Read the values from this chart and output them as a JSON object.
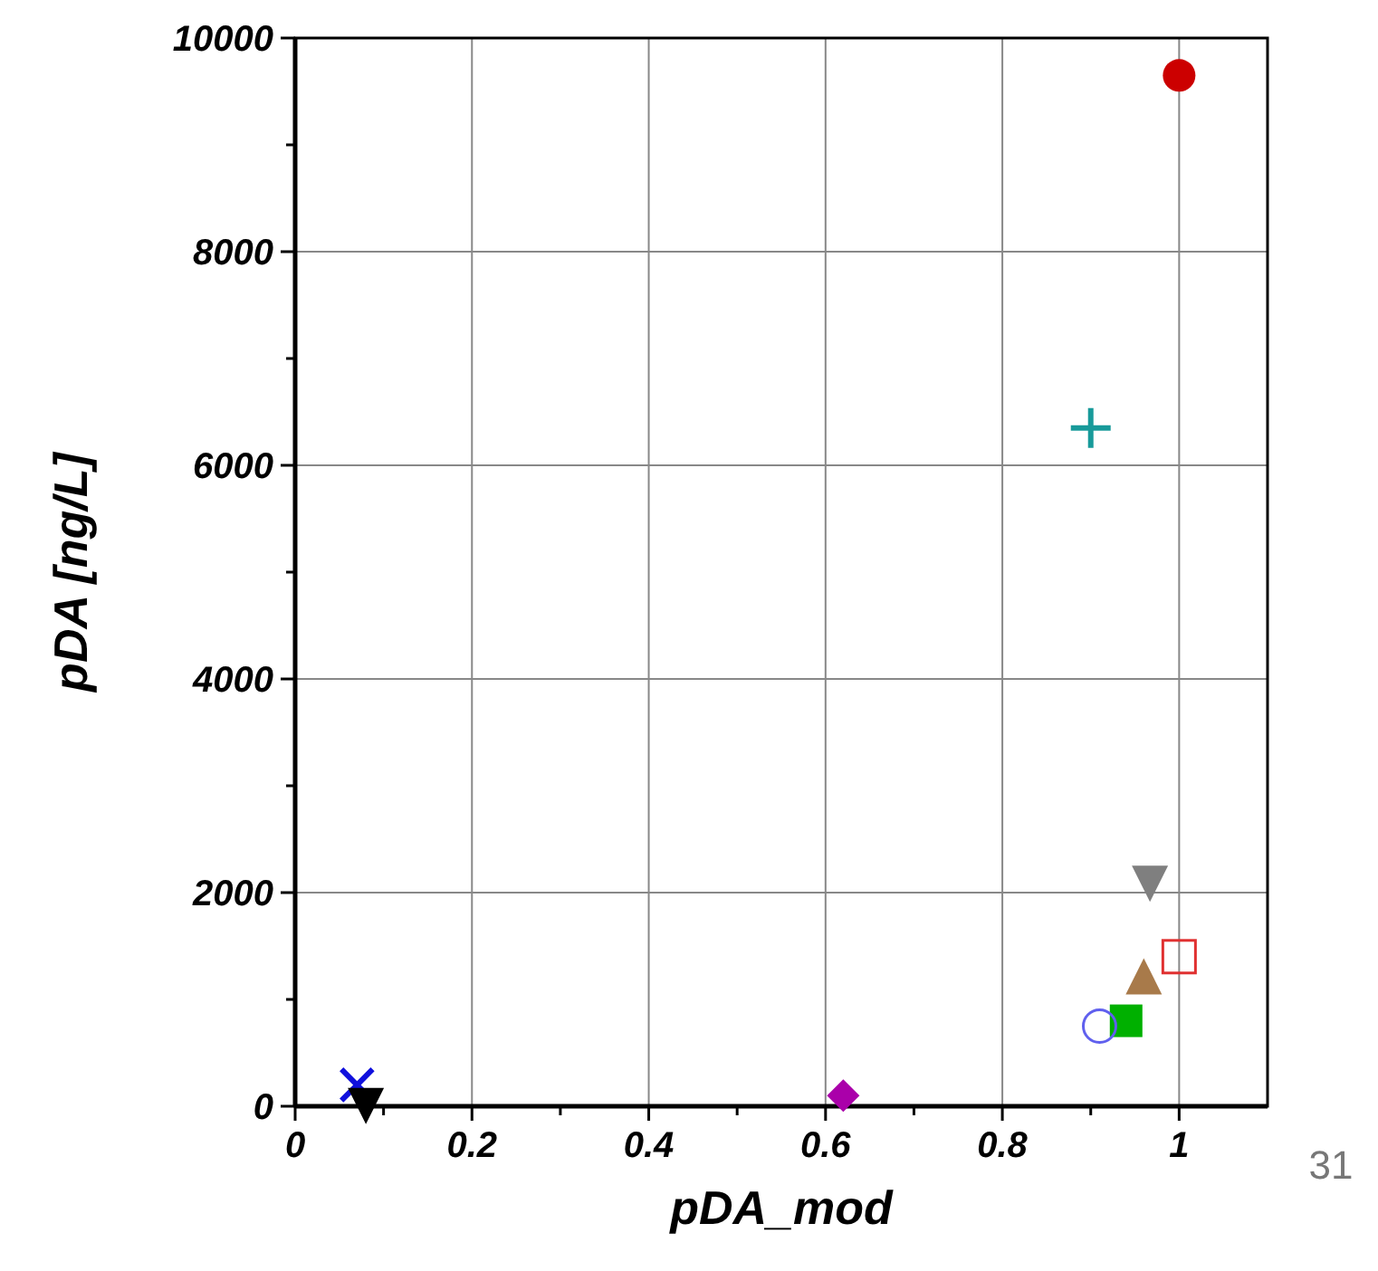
{
  "chart_data": {
    "type": "scatter",
    "xlabel": "pDA_mod",
    "ylabel": "pDA [ng/L]",
    "xlim": [
      0,
      1.1
    ],
    "ylim": [
      0,
      10000
    ],
    "xticks": [
      0,
      {
        "value": 0.1,
        "label": null
      },
      {
        "value": 0.2,
        "label": "0.2"
      },
      {
        "value": 0.3,
        "label": null
      },
      {
        "value": 0.4,
        "label": "0.4"
      },
      {
        "value": 0.5,
        "label": null
      },
      {
        "value": 0.6,
        "label": "0.6"
      },
      {
        "value": 0.7,
        "label": null
      },
      {
        "value": 0.8,
        "label": "0.8"
      },
      {
        "value": 0.9,
        "label": null
      },
      1
    ],
    "yticks": [
      0,
      {
        "value": 1000,
        "label": null
      },
      2000,
      {
        "value": 3000,
        "label": null
      },
      4000,
      {
        "value": 5000,
        "label": null
      },
      6000,
      {
        "value": 7000,
        "label": null
      },
      8000,
      {
        "value": 9000,
        "label": null
      },
      10000
    ],
    "grid": true,
    "series": [
      {
        "color": "#cc0000",
        "marker": "circle",
        "x": [
          1.0
        ],
        "values": [
          9650
        ]
      },
      {
        "color": "#189a9a",
        "marker": "plus",
        "x": [
          0.9
        ],
        "values": [
          6350
        ]
      },
      {
        "color": "#7f7f7f",
        "marker": "triangle-down",
        "x": [
          0.967
        ],
        "values": [
          2100
        ]
      },
      {
        "color": "#e03030",
        "marker": "square-open",
        "x": [
          1.0
        ],
        "values": [
          1400
        ]
      },
      {
        "color": "#a87a4a",
        "marker": "triangle",
        "x": [
          0.96
        ],
        "values": [
          1200
        ]
      },
      {
        "color": "#00b000",
        "marker": "square",
        "x": [
          0.94
        ],
        "values": [
          800
        ]
      },
      {
        "color": "#6060ee",
        "marker": "circle-open",
        "x": [
          0.91
        ],
        "values": [
          750
        ]
      },
      {
        "color": "#1010dd",
        "marker": "cross",
        "x": [
          0.07
        ],
        "values": [
          200
        ]
      },
      {
        "color": "#000000",
        "marker": "triangle-down",
        "x": [
          0.08
        ],
        "values": [
          20
        ]
      },
      {
        "color": "#aa00aa",
        "marker": "diamond",
        "x": [
          0.62
        ],
        "values": [
          100
        ]
      }
    ],
    "annotations": [
      "31"
    ]
  }
}
